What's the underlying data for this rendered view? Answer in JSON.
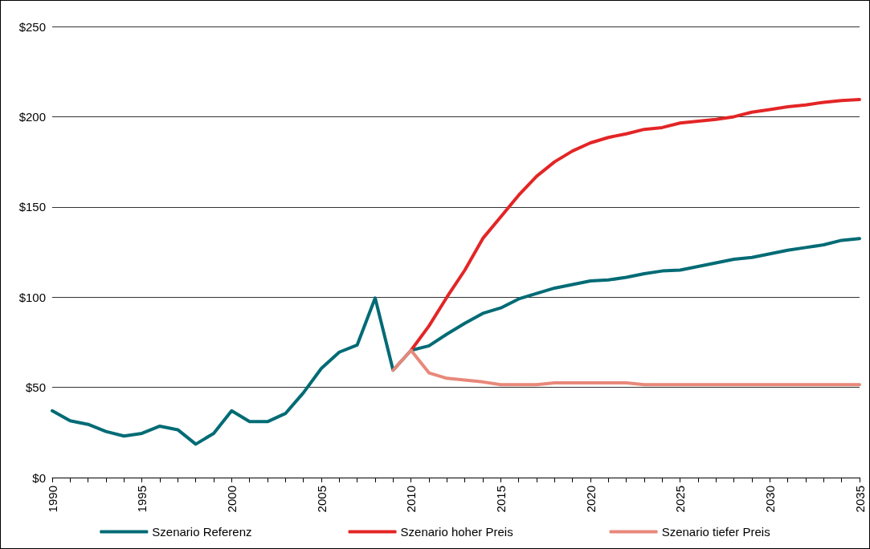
{
  "chart_data": {
    "type": "line",
    "x": [
      1990,
      1991,
      1992,
      1993,
      1994,
      1995,
      1996,
      1997,
      1998,
      1999,
      2000,
      2001,
      2002,
      2003,
      2004,
      2005,
      2006,
      2007,
      2008,
      2009,
      2010,
      2011,
      2012,
      2013,
      2014,
      2015,
      2016,
      2017,
      2018,
      2019,
      2020,
      2021,
      2022,
      2023,
      2024,
      2025,
      2026,
      2027,
      2028,
      2029,
      2030,
      2031,
      2032,
      2033,
      2034,
      2035
    ],
    "series": [
      {
        "name": "Szenario Referenz",
        "color": "#006b75",
        "values": [
          37,
          31.5,
          29.5,
          25.5,
          23,
          24.5,
          28.5,
          26.5,
          18.5,
          24.5,
          37,
          31,
          31,
          35.5,
          47,
          60.5,
          69.5,
          73.5,
          99.5,
          59.5,
          70.5,
          73,
          79.5,
          85.5,
          91,
          94,
          99,
          102,
          105,
          107,
          109,
          109.5,
          111,
          113,
          114.5,
          115,
          117,
          119,
          121,
          122,
          124,
          126,
          127.5,
          129,
          131.5,
          132.5
        ]
      },
      {
        "name": "Szenario hoher Preis",
        "color": "#e32526",
        "values": [
          null,
          null,
          null,
          null,
          null,
          null,
          null,
          null,
          null,
          null,
          null,
          null,
          null,
          null,
          null,
          null,
          null,
          null,
          null,
          null,
          70.5,
          84,
          100,
          115,
          132.5,
          144.5,
          156.5,
          167,
          175,
          181,
          185.5,
          188.5,
          190.5,
          193,
          194,
          196.5,
          197.5,
          198.5,
          200,
          202.5,
          204,
          205.5,
          206.5,
          208,
          209,
          209.5
        ]
      },
      {
        "name": "Szenario tiefer Preis",
        "color": "#e8887a",
        "values": [
          null,
          null,
          null,
          null,
          null,
          null,
          null,
          null,
          null,
          null,
          null,
          null,
          null,
          null,
          null,
          null,
          null,
          null,
          null,
          59.5,
          70.5,
          58,
          55,
          54,
          53,
          51.5,
          51.5,
          51.5,
          52.5,
          52.5,
          52.5,
          52.5,
          52.5,
          51.5,
          51.5,
          51.5,
          51.5,
          51.5,
          51.5,
          51.5,
          51.5,
          51.5,
          51.5,
          51.5,
          51.5,
          51.5
        ]
      }
    ],
    "xlim": [
      1990,
      2035
    ],
    "xticks": [
      1990,
      {
        "value": 1991,
        "label": null
      },
      {
        "value": 1992,
        "label": null
      },
      {
        "value": 1993,
        "label": null
      },
      {
        "value": 1994,
        "label": null
      },
      1995,
      {
        "value": 1996,
        "label": null
      },
      {
        "value": 1997,
        "label": null
      },
      {
        "value": 1998,
        "label": null
      },
      {
        "value": 1999,
        "label": null
      },
      2000,
      {
        "value": 2001,
        "label": null
      },
      {
        "value": 2002,
        "label": null
      },
      {
        "value": 2003,
        "label": null
      },
      {
        "value": 2004,
        "label": null
      },
      2005,
      {
        "value": 2006,
        "label": null
      },
      {
        "value": 2007,
        "label": null
      },
      {
        "value": 2008,
        "label": null
      },
      {
        "value": 2009,
        "label": null
      },
      2010,
      {
        "value": 2011,
        "label": null
      },
      {
        "value": 2012,
        "label": null
      },
      {
        "value": 2013,
        "label": null
      },
      {
        "value": 2014,
        "label": null
      },
      2015,
      {
        "value": 2016,
        "label": null
      },
      {
        "value": 2017,
        "label": null
      },
      {
        "value": 2018,
        "label": null
      },
      {
        "value": 2019,
        "label": null
      },
      2020,
      {
        "value": 2021,
        "label": null
      },
      {
        "value": 2022,
        "label": null
      },
      {
        "value": 2023,
        "label": null
      },
      {
        "value": 2024,
        "label": null
      },
      2025,
      {
        "value": 2026,
        "label": null
      },
      {
        "value": 2027,
        "label": null
      },
      {
        "value": 2028,
        "label": null
      },
      {
        "value": 2029,
        "label": null
      },
      2030,
      {
        "value": 2031,
        "label": null
      },
      {
        "value": 2032,
        "label": null
      },
      {
        "value": 2033,
        "label": null
      },
      {
        "value": 2034,
        "label": null
      },
      2035
    ],
    "ylim": [
      0,
      250
    ],
    "yticks": [
      {
        "value": 0,
        "label": "$0"
      },
      {
        "value": 50,
        "label": "$50"
      },
      {
        "value": 100,
        "label": "$100"
      },
      {
        "value": 150,
        "label": "$150"
      },
      {
        "value": 200,
        "label": "$200"
      },
      {
        "value": 250,
        "label": "$250"
      }
    ],
    "grid": "y",
    "legend": "bottom",
    "marker": "none",
    "line_style": "solid"
  }
}
